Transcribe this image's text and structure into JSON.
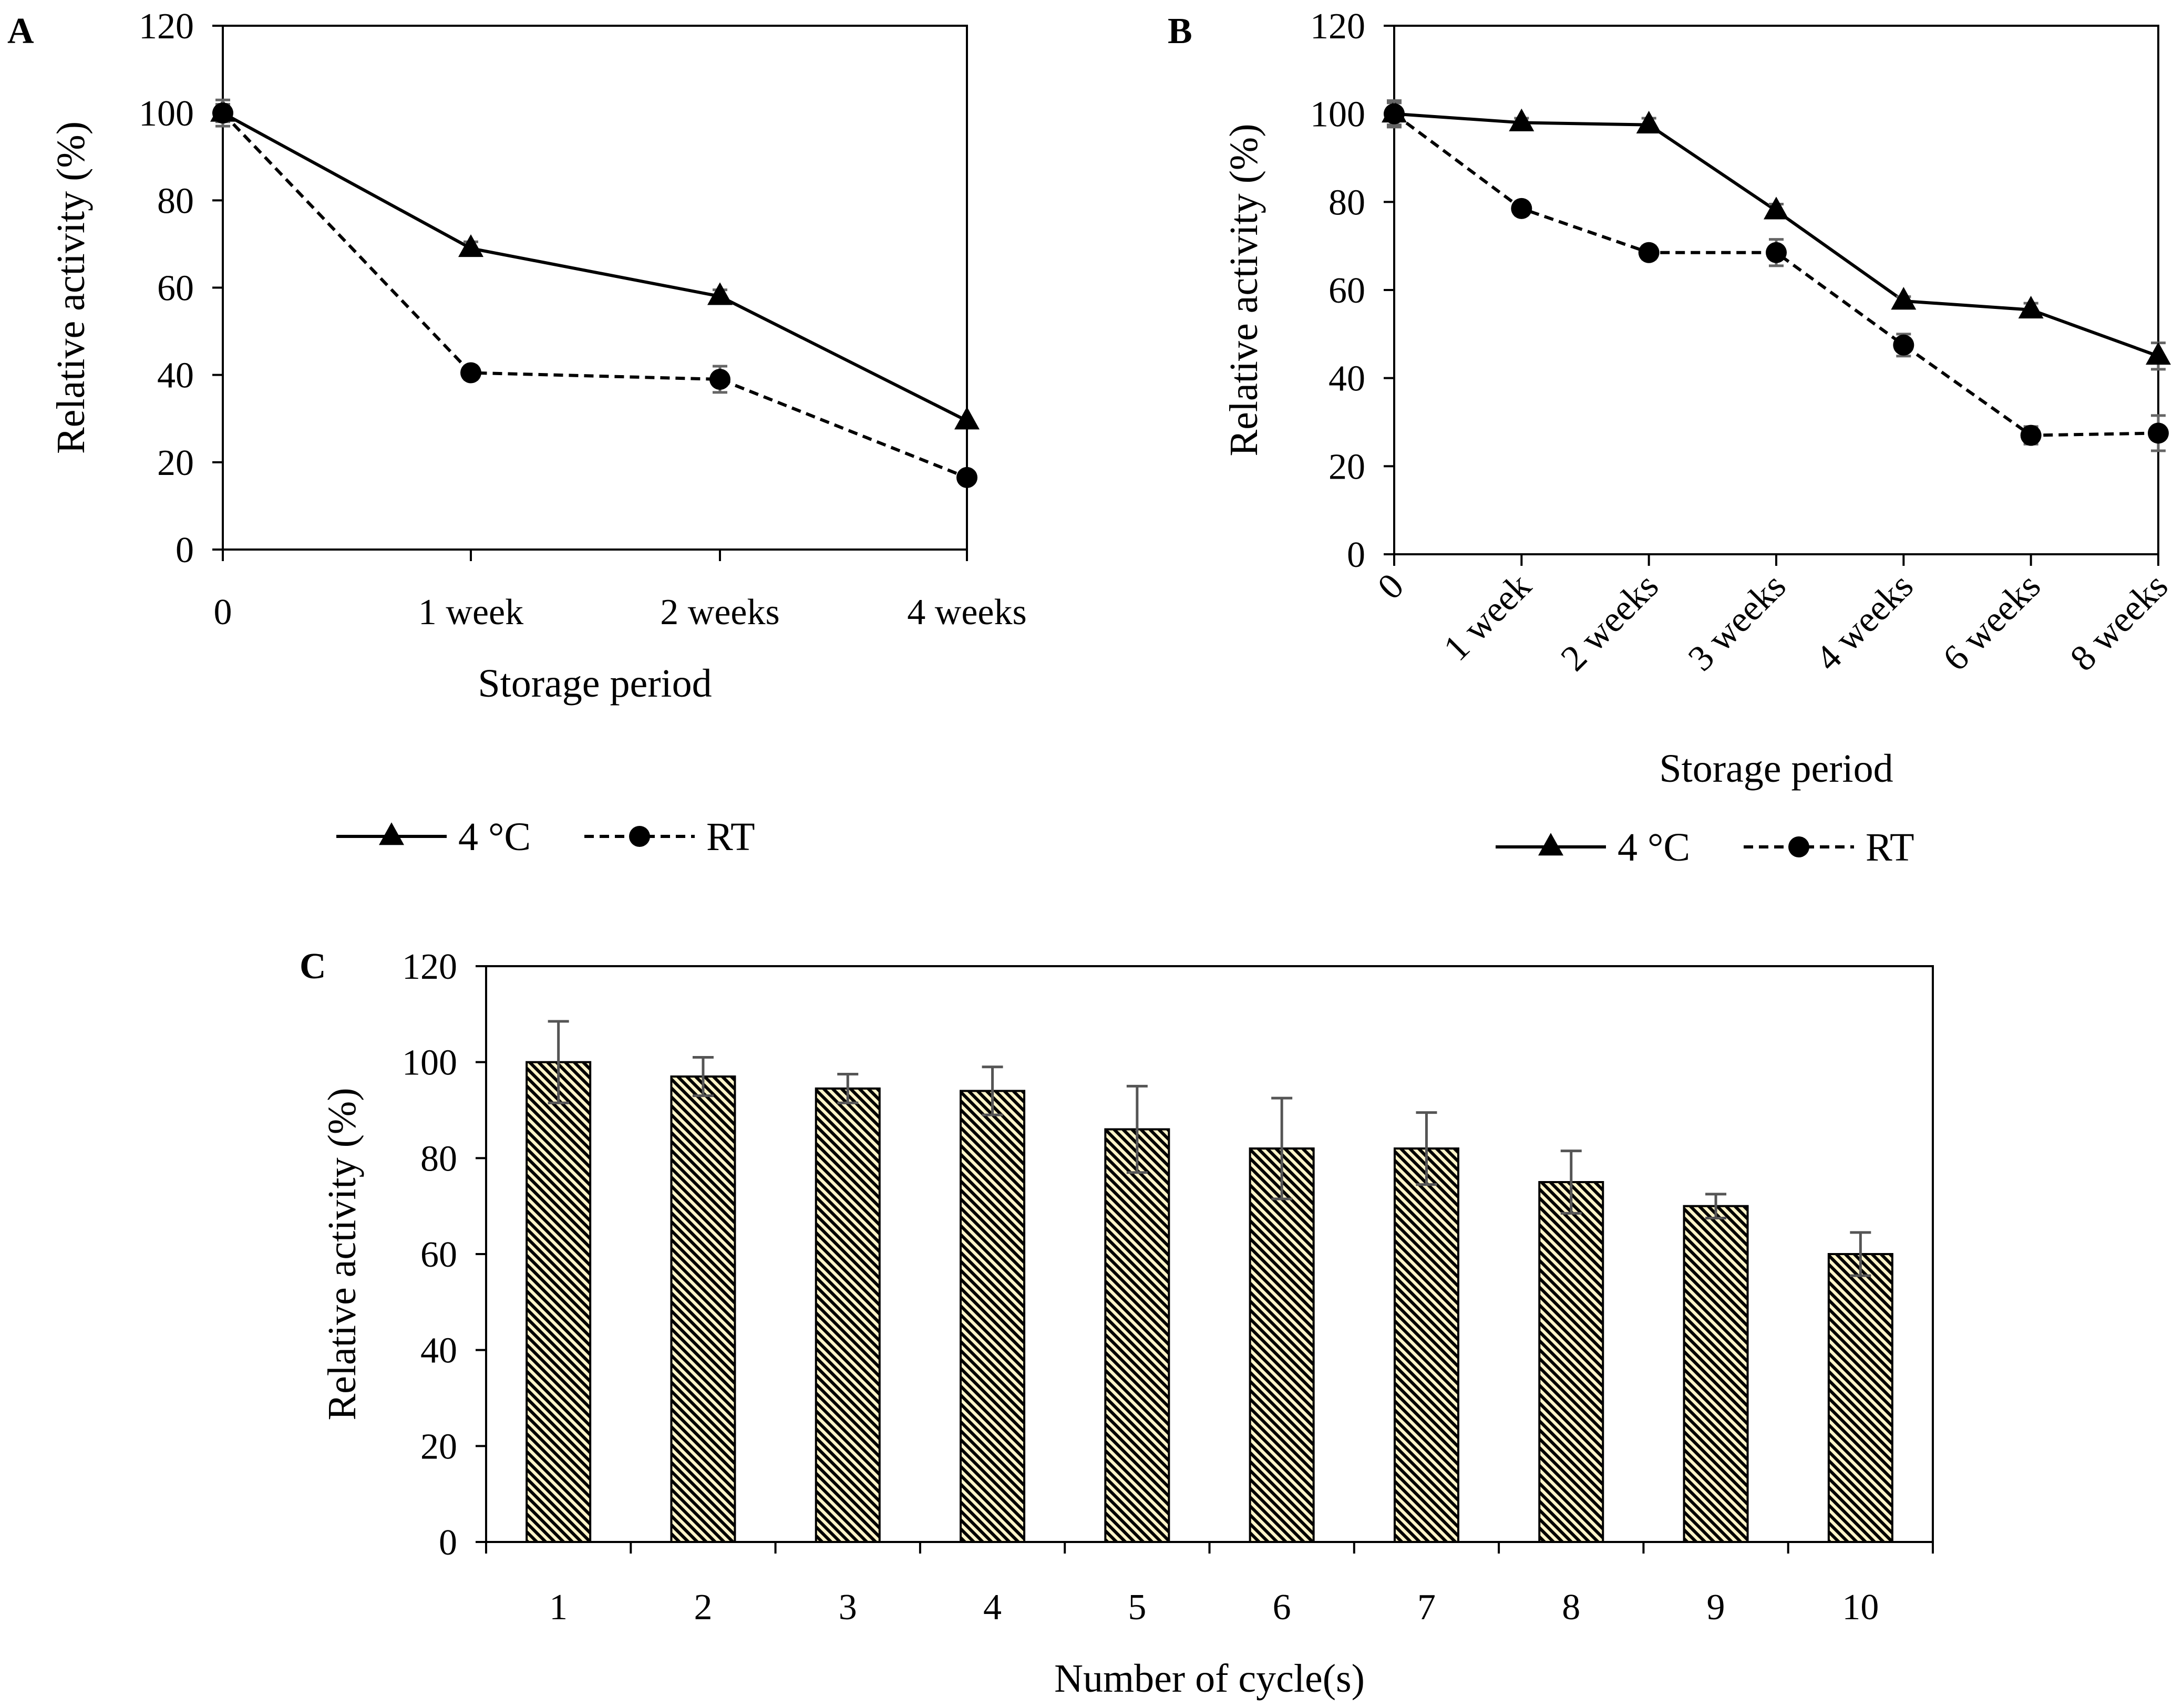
{
  "chart_data": [
    {
      "panel": "A",
      "type": "line",
      "xlabel": "Storage period",
      "ylabel": "Relative activity (%)",
      "ylim": [
        0,
        120
      ],
      "yticks": [
        0,
        20,
        40,
        60,
        80,
        100,
        120
      ],
      "categories": [
        "0",
        "1 week",
        "2 weeks",
        "4 weeks"
      ],
      "series": [
        {
          "name": "4 °C",
          "marker": "triangle",
          "dash": "solid",
          "values": [
            100,
            69,
            58,
            29.5
          ],
          "errors": [
            2,
            1.5,
            1.5,
            0
          ]
        },
        {
          "name": "RT",
          "marker": "circle",
          "dash": "dashed",
          "values": [
            100,
            40.5,
            39,
            16.5
          ],
          "errors": [
            3,
            1.5,
            3,
            0
          ]
        }
      ],
      "legend": "below"
    },
    {
      "panel": "B",
      "type": "line",
      "xlabel": "Storage period",
      "ylabel": "Relative activity (%)",
      "ylim": [
        0,
        120
      ],
      "yticks": [
        0,
        20,
        40,
        60,
        80,
        100,
        120
      ],
      "categories": [
        "0",
        "1 week",
        "2 weeks",
        "3 weeks",
        "4 weeks",
        "6 weeks",
        "8 weeks"
      ],
      "series": [
        {
          "name": "4 °C",
          "marker": "triangle",
          "dash": "solid",
          "values": [
            100,
            98,
            97.5,
            78,
            57.5,
            55.5,
            45
          ],
          "errors": [
            2.5,
            1,
            1.5,
            1.5,
            1,
            1.5,
            3
          ]
        },
        {
          "name": "RT",
          "marker": "circle",
          "dash": "dashed",
          "values": [
            100,
            78.5,
            68.5,
            68.5,
            47.5,
            27,
            27.5
          ],
          "errors": [
            3,
            1.5,
            1.5,
            3,
            2.5,
            2,
            4
          ]
        }
      ],
      "legend": "below"
    },
    {
      "panel": "C",
      "type": "bar",
      "xlabel": "Number of cycle(s)",
      "ylabel": "Relative activity (%)",
      "ylim": [
        0,
        120
      ],
      "yticks": [
        0,
        20,
        40,
        60,
        80,
        100,
        120
      ],
      "categories": [
        "1",
        "2",
        "3",
        "4",
        "5",
        "6",
        "7",
        "8",
        "9",
        "10"
      ],
      "values": [
        100,
        97,
        94.5,
        94,
        86,
        82,
        82,
        75,
        70,
        60
      ],
      "errors": [
        8.5,
        4,
        3,
        5,
        9,
        10.5,
        7.5,
        6.5,
        2.5,
        4.5
      ],
      "bar_color": "#F5C842",
      "legend": "none"
    }
  ]
}
